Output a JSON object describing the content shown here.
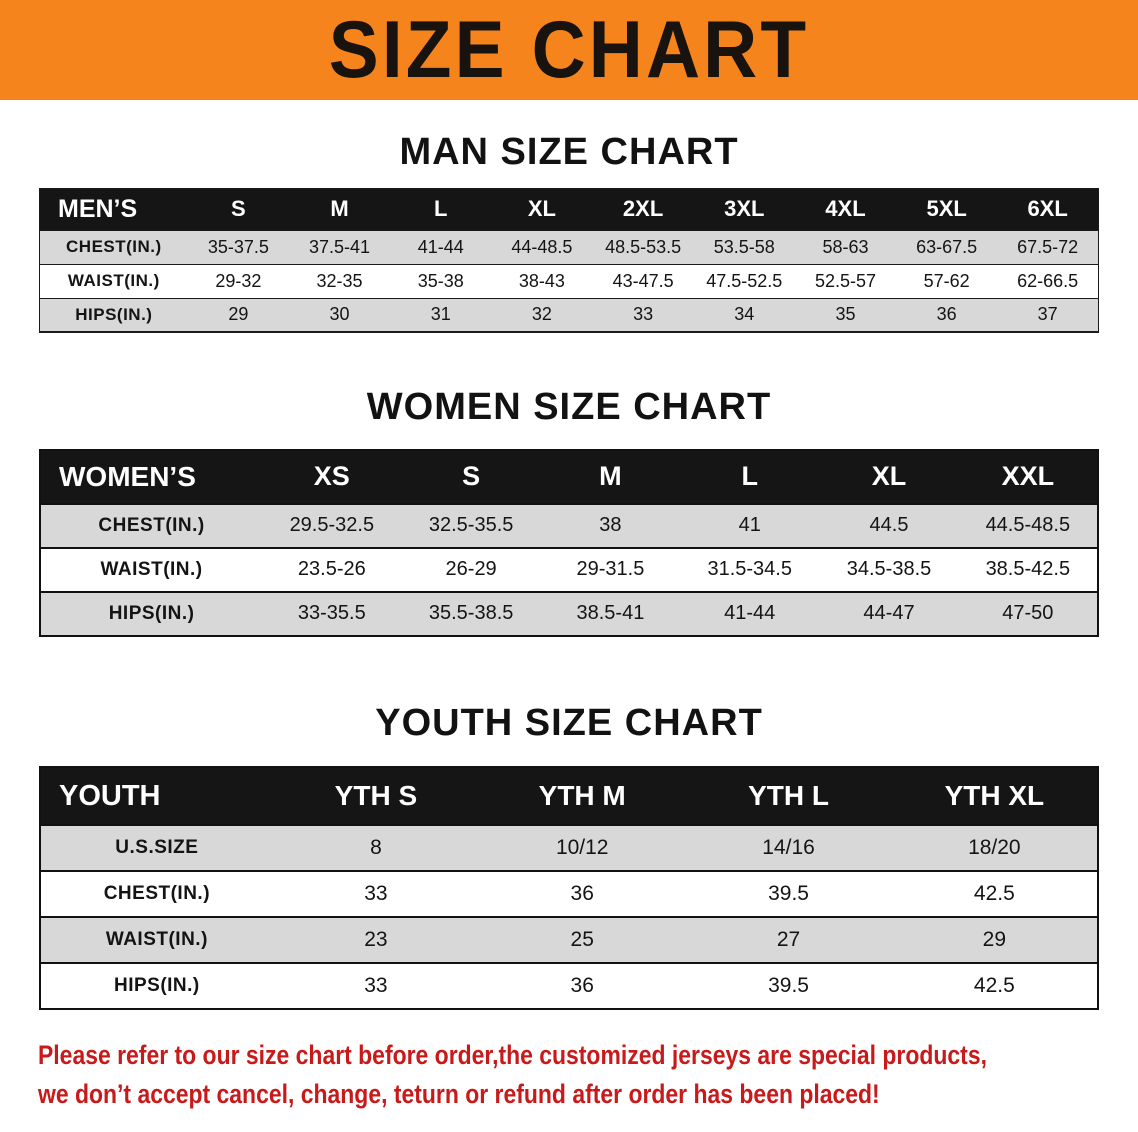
{
  "banner": {
    "title": "SIZE CHART",
    "bg_color": "#f6841d",
    "title_color": "#18130e"
  },
  "sections": [
    {
      "id": "men",
      "heading": "MAN SIZE CHART",
      "table": {
        "header": [
          "MEN’S",
          "S",
          "M",
          "L",
          "XL",
          "2XL",
          "3XL",
          "4XL",
          "5XL",
          "6XL"
        ],
        "rows": [
          [
            "CHEST(IN.)",
            "35-37.5",
            "37.5-41",
            "41-44",
            "44-48.5",
            "48.5-53.5",
            "53.5-58",
            "58-63",
            "63-67.5",
            "67.5-72"
          ],
          [
            "WAIST(IN.)",
            "29-32",
            "32-35",
            "35-38",
            "38-43",
            "43-47.5",
            "47.5-52.5",
            "52.5-57",
            "57-62",
            "62-66.5"
          ],
          [
            "HIPS(IN.)",
            "29",
            "30",
            "31",
            "32",
            "33",
            "34",
            "35",
            "36",
            "37"
          ]
        ]
      }
    },
    {
      "id": "women",
      "heading": "WOMEN SIZE CHART",
      "table": {
        "header": [
          "WOMEN’S",
          "XS",
          "S",
          "M",
          "L",
          "XL",
          "XXL"
        ],
        "rows": [
          [
            "CHEST(IN.)",
            "29.5-32.5",
            "32.5-35.5",
            "38",
            "41",
            "44.5",
            "44.5-48.5"
          ],
          [
            "WAIST(IN.)",
            "23.5-26",
            "26-29",
            "29-31.5",
            "31.5-34.5",
            "34.5-38.5",
            "38.5-42.5"
          ],
          [
            "HIPS(IN.)",
            "33-35.5",
            "35.5-38.5",
            "38.5-41",
            "41-44",
            "44-47",
            "47-50"
          ]
        ]
      }
    },
    {
      "id": "youth",
      "heading": "YOUTH SIZE CHART",
      "table": {
        "header": [
          "YOUTH",
          "YTH S",
          "YTH M",
          "YTH L",
          "YTH XL"
        ],
        "rows": [
          [
            "U.S.SIZE",
            "8",
            "10/12",
            "14/16",
            "18/20"
          ],
          [
            "CHEST(IN.)",
            "33",
            "36",
            "39.5",
            "42.5"
          ],
          [
            "WAIST(IN.)",
            "23",
            "25",
            "27",
            "29"
          ],
          [
            "HIPS(IN.)",
            "33",
            "36",
            "39.5",
            "42.5"
          ]
        ]
      }
    }
  ],
  "disclaimer": {
    "line1": "Please refer to our size chart before order,the customized jerseys are special products,",
    "line2": "we don’t accept cancel, change, teturn or refund after order has been placed!",
    "color": "#c81a1a"
  },
  "stripe_color": "#d8d8d8",
  "header_bg_color": "#151515"
}
